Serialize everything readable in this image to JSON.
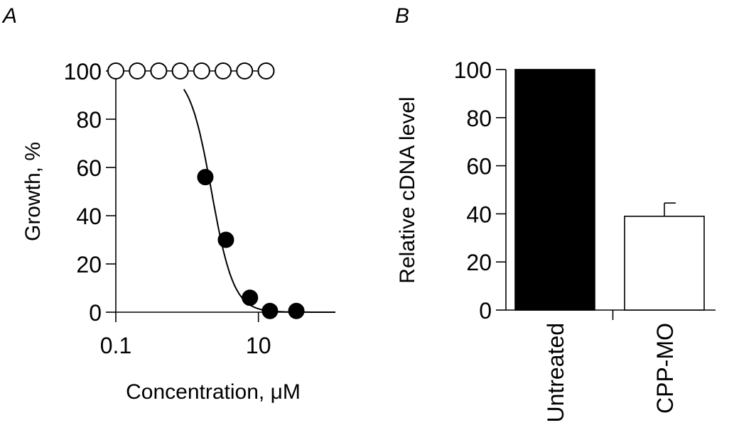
{
  "panels": {
    "a_label": "A",
    "b_label": "B"
  },
  "chart_data": [
    {
      "type": "scatter",
      "panel": "A",
      "xlabel": "Concentration, μM",
      "ylabel": "Growth, %",
      "x_scale": "log",
      "xlim": [
        0.1,
        120
      ],
      "ylim": [
        0,
        100
      ],
      "x_ticks": [
        0.1,
        10
      ],
      "x_tick_labels": [
        "0.1",
        "10"
      ],
      "y_ticks": [
        0,
        20,
        40,
        60,
        80,
        100
      ],
      "y_tick_labels": [
        "0",
        "20",
        "40",
        "60",
        "80",
        "100"
      ],
      "series": [
        {
          "marker": "open-circle",
          "color": "#ffffff",
          "x": [
            0.1,
            0.2,
            0.4,
            0.8,
            1.6,
            3.2,
            6.4,
            12.8
          ],
          "y": [
            100,
            100,
            100,
            100,
            100,
            100,
            100,
            100
          ],
          "line": "connected"
        },
        {
          "marker": "filled-circle",
          "color": "#000000",
          "x": [
            1.8,
            3.5,
            7.6,
            14.5,
            34
          ],
          "y": [
            56,
            30,
            6,
            0.5,
            0.5
          ],
          "fit": {
            "model": "hill",
            "top": 100,
            "bottom": 0,
            "ec50": 2.2,
            "hill_slope": 2.8,
            "x_range": [
              0.9,
              120
            ]
          }
        }
      ]
    },
    {
      "type": "bar",
      "panel": "B",
      "ylabel": "Relative cDNA level",
      "categories": [
        "Untreated",
        "CPP-MO"
      ],
      "values": [
        100,
        39
      ],
      "errors": [
        0,
        5.5
      ],
      "colors": [
        "#000000",
        "#ffffff"
      ],
      "ylim": [
        0,
        100
      ],
      "y_ticks": [
        0,
        20,
        40,
        60,
        80,
        100
      ],
      "y_tick_labels": [
        "0",
        "20",
        "40",
        "60",
        "80",
        "100"
      ]
    }
  ]
}
